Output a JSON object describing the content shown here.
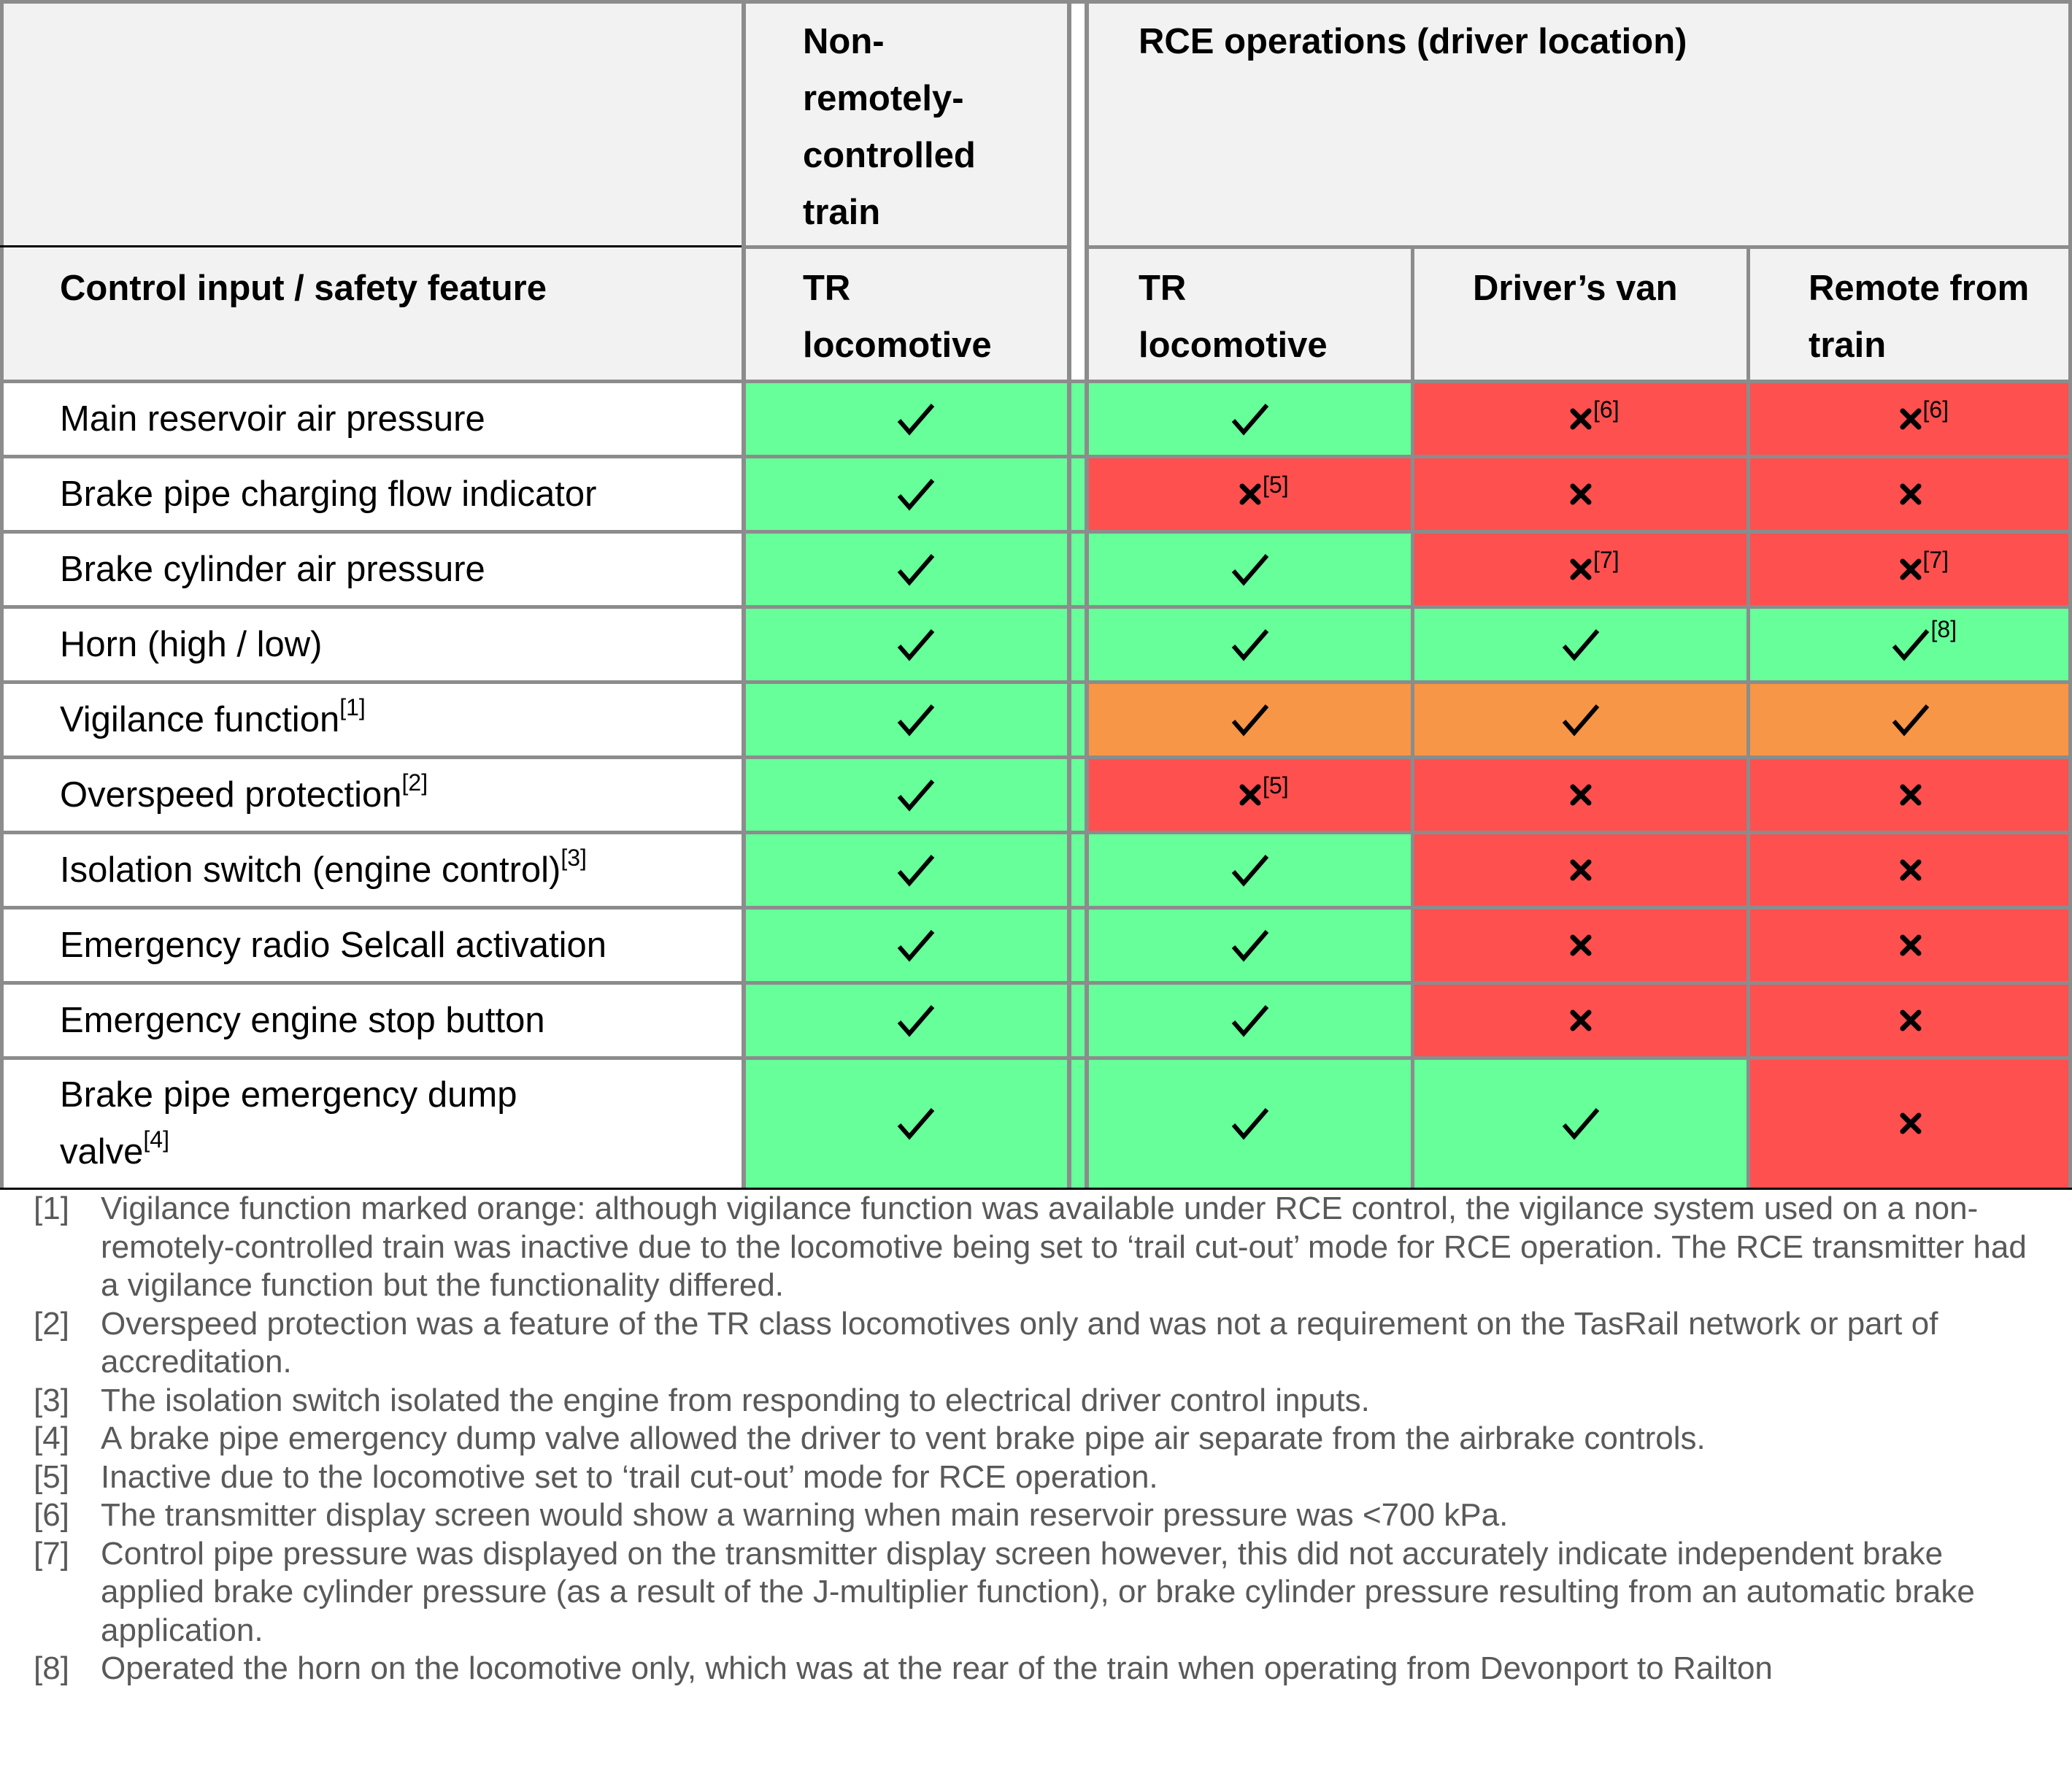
{
  "header": {
    "col1_title": "Control input / safety feature",
    "group_nonrc": "Non-\nremotely-\ncontrolled\ntrain",
    "group_rce": "RCE operations (driver location)",
    "sub_nonrc_tr": "TR\nlocomotive",
    "sub_rce_tr": "TR\nlocomotive",
    "sub_rce_van": "Driver’s van",
    "sub_rce_remote": "Remote from\ntrain"
  },
  "colors": {
    "available": "#66ff99",
    "unavailable": "#ff5050",
    "partial": "#f79646",
    "header_bg": "#f2f2f2"
  },
  "rows": [
    {
      "label": "Main reservoir air pressure",
      "note": "",
      "cells": [
        {
          "mark": "check",
          "color": "green",
          "note": ""
        },
        {
          "mark": "check",
          "color": "green",
          "note": ""
        },
        {
          "mark": "cross",
          "color": "red",
          "note": "[6]"
        },
        {
          "mark": "cross",
          "color": "red",
          "note": "[6]"
        }
      ]
    },
    {
      "label": "Brake pipe charging flow indicator",
      "note": "",
      "cells": [
        {
          "mark": "check",
          "color": "green",
          "note": ""
        },
        {
          "mark": "cross",
          "color": "red",
          "note": "[5]"
        },
        {
          "mark": "cross",
          "color": "red",
          "note": ""
        },
        {
          "mark": "cross",
          "color": "red",
          "note": ""
        }
      ]
    },
    {
      "label": "Brake cylinder air pressure",
      "note": "",
      "cells": [
        {
          "mark": "check",
          "color": "green",
          "note": ""
        },
        {
          "mark": "check",
          "color": "green",
          "note": ""
        },
        {
          "mark": "cross",
          "color": "red",
          "note": "[7]"
        },
        {
          "mark": "cross",
          "color": "red",
          "note": "[7]"
        }
      ]
    },
    {
      "label": "Horn (high / low)",
      "note": "",
      "cells": [
        {
          "mark": "check",
          "color": "green",
          "note": ""
        },
        {
          "mark": "check",
          "color": "green",
          "note": ""
        },
        {
          "mark": "check",
          "color": "green",
          "note": ""
        },
        {
          "mark": "check",
          "color": "green",
          "note": "[8]"
        }
      ]
    },
    {
      "label": "Vigilance function",
      "note": "[1]",
      "cells": [
        {
          "mark": "check",
          "color": "green",
          "note": ""
        },
        {
          "mark": "check",
          "color": "orange",
          "note": ""
        },
        {
          "mark": "check",
          "color": "orange",
          "note": ""
        },
        {
          "mark": "check",
          "color": "orange",
          "note": ""
        }
      ]
    },
    {
      "label": "Overspeed protection",
      "note": "[2]",
      "cells": [
        {
          "mark": "check",
          "color": "green",
          "note": ""
        },
        {
          "mark": "cross",
          "color": "red",
          "note": "[5]"
        },
        {
          "mark": "cross",
          "color": "red",
          "note": ""
        },
        {
          "mark": "cross",
          "color": "red",
          "note": ""
        }
      ]
    },
    {
      "label": "Isolation switch (engine control)",
      "note": "[3]",
      "cells": [
        {
          "mark": "check",
          "color": "green",
          "note": ""
        },
        {
          "mark": "check",
          "color": "green",
          "note": ""
        },
        {
          "mark": "cross",
          "color": "red",
          "note": ""
        },
        {
          "mark": "cross",
          "color": "red",
          "note": ""
        }
      ]
    },
    {
      "label": "Emergency radio Selcall activation",
      "note": "",
      "cells": [
        {
          "mark": "check",
          "color": "green",
          "note": ""
        },
        {
          "mark": "check",
          "color": "green",
          "note": ""
        },
        {
          "mark": "cross",
          "color": "red",
          "note": ""
        },
        {
          "mark": "cross",
          "color": "red",
          "note": ""
        }
      ]
    },
    {
      "label": "Emergency engine stop button",
      "note": "",
      "cells": [
        {
          "mark": "check",
          "color": "green",
          "note": ""
        },
        {
          "mark": "check",
          "color": "green",
          "note": ""
        },
        {
          "mark": "cross",
          "color": "red",
          "note": ""
        },
        {
          "mark": "cross",
          "color": "red",
          "note": ""
        }
      ]
    },
    {
      "label": "Brake pipe emergency dump\nvalve",
      "note": "[4]",
      "cells": [
        {
          "mark": "check",
          "color": "green",
          "note": ""
        },
        {
          "mark": "check",
          "color": "green",
          "note": ""
        },
        {
          "mark": "check",
          "color": "green",
          "note": ""
        },
        {
          "mark": "cross",
          "color": "red",
          "note": ""
        }
      ]
    }
  ],
  "footnotes": [
    {
      "num": "[1]",
      "text": "Vigilance function marked orange: although vigilance function was available under RCE control, the vigilance system used on a non-remotely-controlled train was inactive due to the locomotive being set to ‘trail cut-out’ mode for RCE operation. The RCE transmitter had a vigilance function but the functionality differed."
    },
    {
      "num": "[2]",
      "text": "Overspeed protection was a feature of the TR class locomotives only and was not a requirement on the TasRail network or part of accreditation."
    },
    {
      "num": "[3]",
      "text": "The isolation switch isolated the engine from responding to electrical driver control inputs."
    },
    {
      "num": "[4]",
      "text": "A brake pipe emergency dump valve allowed the driver to vent brake pipe air separate from the airbrake controls."
    },
    {
      "num": "[5]",
      "text": "Inactive due to the locomotive set to ‘trail cut-out’ mode for RCE operation."
    },
    {
      "num": "[6]",
      "text": "The transmitter display screen would show a warning when main reservoir pressure was <700 kPa."
    },
    {
      "num": "[7]",
      "text": "Control pipe pressure was displayed on the transmitter display screen however, this did not accurately indicate independent brake applied brake cylinder pressure (as a result of the J-multiplier function), or brake cylinder pressure resulting from an automatic brake application."
    },
    {
      "num": "[8]",
      "text": "Operated the horn on the locomotive only, which was at the rear of the train when operating from Devonport to Railton"
    }
  ]
}
